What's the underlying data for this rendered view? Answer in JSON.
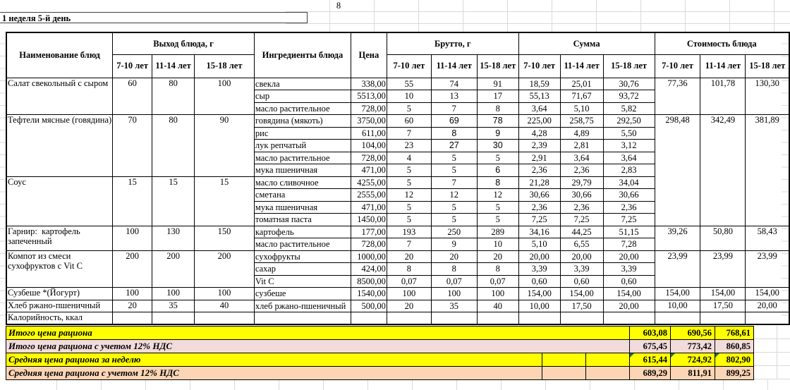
{
  "page": {
    "sheet_number": "8",
    "title": "1 неделя 5-й день"
  },
  "header": {
    "name": "Наименование блюд",
    "output": "Выход блюда, г",
    "ingredients": "Ингредиенты блюда",
    "price": "Цена",
    "gross": "Брутто, г",
    "sum": "Сумма",
    "cost": "Стоимость блюда",
    "ages": [
      "7-10 лет",
      "11-14 лет",
      "15-18 лет"
    ]
  },
  "dishes": [
    {
      "name": "Салат свекольный с сыром",
      "out": [
        "60",
        "80",
        "100"
      ],
      "costSpan": 3,
      "cost": [
        "77,36",
        "101,78",
        "130,30"
      ],
      "rows": [
        {
          "ing": "свекла",
          "price": "338,00",
          "gross": [
            "55",
            "74",
            "91"
          ],
          "sum": [
            "18,59",
            "25,01",
            "30,76"
          ]
        },
        {
          "ing": "сыр",
          "price": "5513,00",
          "gross": [
            "10",
            "13",
            "17"
          ],
          "sum": [
            "55,13",
            "71,67",
            "93,72"
          ]
        },
        {
          "ing": "масло растительное",
          "price": "728,00",
          "gross": [
            "5",
            "7",
            "8"
          ],
          "sum": [
            "3,64",
            "5,10",
            "5,82"
          ]
        }
      ]
    },
    {
      "name": "Тефтели мясные (говядина)",
      "out": [
        "70",
        "80",
        "90"
      ],
      "costSpan": 9,
      "cost": [
        "298,48",
        "342,49",
        "381,89"
      ],
      "rows": [
        {
          "ing": "говядина (мякоть)",
          "price": "3750,00",
          "gross": [
            "60",
            "69",
            "78"
          ],
          "gb": [
            false,
            true,
            true
          ],
          "sum": [
            "225,00",
            "258,75",
            "292,50"
          ]
        },
        {
          "ing": "рис",
          "price": "611,00",
          "gross": [
            "7",
            "8",
            "9"
          ],
          "gb": [
            false,
            true,
            true
          ],
          "sum": [
            "4,28",
            "4,89",
            "5,50"
          ]
        },
        {
          "ing": "лук репчатый",
          "price": "104,00",
          "gross": [
            "23",
            "27",
            "30"
          ],
          "gb": [
            false,
            true,
            true
          ],
          "sum": [
            "2,39",
            "2,81",
            "3,12"
          ]
        },
        {
          "ing": "масло растительное",
          "price": "728,00",
          "gross": [
            "4",
            "5",
            "5"
          ],
          "sum": [
            "2,91",
            "3,64",
            "3,64"
          ]
        },
        {
          "ing": "мука пшеничная",
          "price": "471,00",
          "gross": [
            "5",
            "5",
            "6"
          ],
          "gb": [
            false,
            false,
            true
          ],
          "sum": [
            "2,36",
            "2,36",
            "2,83"
          ]
        }
      ]
    },
    {
      "name": "Соус",
      "out": [
        "15",
        "15",
        "15"
      ],
      "costSpan": 0,
      "cost": [],
      "rows": [
        {
          "ing": "масло сливочное",
          "price": "4255,00",
          "gross": [
            "5",
            "7",
            "8"
          ],
          "gb": [
            false,
            false,
            true
          ],
          "sum": [
            "21,28",
            "29,79",
            "34,04"
          ]
        },
        {
          "ing": "сметана",
          "price": "2555,00",
          "gross": [
            "12",
            "12",
            "12"
          ],
          "sum": [
            "30,66",
            "30,66",
            "30,66"
          ]
        },
        {
          "ing": "мука пшеничная",
          "price": "471,00",
          "gross": [
            "5",
            "5",
            "5"
          ],
          "sum": [
            "2,36",
            "2,36",
            "2,36"
          ]
        },
        {
          "ing": "томатная паста",
          "price": "1450,00",
          "gross": [
            "5",
            "5",
            "5"
          ],
          "sum": [
            "7,25",
            "7,25",
            "7,25"
          ]
        }
      ]
    },
    {
      "name": "Гарнир:  картофель\nзапеченный",
      "out": [
        "100",
        "130",
        "150"
      ],
      "costSpan": 2,
      "cost": [
        "39,26",
        "50,80",
        "58,43"
      ],
      "rows": [
        {
          "ing": "картофель",
          "price": "177,00",
          "gross": [
            "193",
            "250",
            "289"
          ],
          "sum": [
            "34,16",
            "44,25",
            "51,15"
          ]
        },
        {
          "ing": "масло растительное",
          "price": "728,00",
          "gross": [
            "7",
            "9",
            "10"
          ],
          "sum": [
            "5,10",
            "6,55",
            "7,28"
          ]
        }
      ]
    },
    {
      "name": "Компот из смеси\nсухофруктов с Vit C",
      "out": [
        "200",
        "200",
        "200"
      ],
      "costSpan": 3,
      "cost": [
        "23,99",
        "23,99",
        "23,99"
      ],
      "rows": [
        {
          "ing": "сухофрукты",
          "price": "1000,00",
          "gross": [
            "20",
            "20",
            "20"
          ],
          "sum": [
            "20,00",
            "20,00",
            "20,00"
          ]
        },
        {
          "ing": "сахар",
          "price": "424,00",
          "gross": [
            "8",
            "8",
            "8"
          ],
          "sum": [
            "3,39",
            "3,39",
            "3,39"
          ]
        },
        {
          "ing": "Vit C",
          "price": "8500,00",
          "gross": [
            "0,07",
            "0,07",
            "0,07"
          ],
          "sum": [
            "0,60",
            "0,60",
            "0,60"
          ]
        }
      ]
    },
    {
      "name": "Сузбеше *(Йогурт)",
      "out": [
        "100",
        "100",
        "100"
      ],
      "costSpan": 1,
      "cost": [
        "154,00",
        "154,00",
        "154,00"
      ],
      "rows": [
        {
          "ing": "сузбеше",
          "price": "1540,00",
          "gross": [
            "100",
            "100",
            "100"
          ],
          "sum": [
            "154,00",
            "154,00",
            "154,00"
          ]
        }
      ]
    },
    {
      "name": "Хлеб ржано-пшеничный",
      "out": [
        "20",
        "35",
        "40"
      ],
      "costSpan": 1,
      "cost": [
        "10,00",
        "17,50",
        "20,00"
      ],
      "rows": [
        {
          "ing": "хлеб ржано-пшеничный",
          "price": "500,00",
          "gross": [
            "20",
            "35",
            "40"
          ],
          "sum": [
            "10,00",
            "17,50",
            "20,00"
          ]
        }
      ]
    },
    {
      "name": "Калорийность, ккал",
      "nameBold": true,
      "out": [
        "",
        "",
        ""
      ],
      "costSpan": 1,
      "cost": [
        "",
        "",
        ""
      ],
      "rows": [
        {
          "ing": "",
          "price": "",
          "gross": [
            "",
            "",
            ""
          ],
          "sum": [
            "",
            "",
            ""
          ]
        }
      ]
    }
  ],
  "summary": {
    "rows": [
      {
        "label": "Итого цена рациона",
        "values": [
          "603,08",
          "690,56",
          "768,61"
        ],
        "bg": "#ffff00",
        "extra_cells": false,
        "flagged": false
      },
      {
        "label": "Итого цена рациона с учетом 12% НДС",
        "values": [
          "675,45",
          "773,42",
          "860,85"
        ],
        "bg": "#f2dcdb",
        "extra_cells": false,
        "flagged": false
      },
      {
        "label": "Средняя цена рациона за неделю",
        "values": [
          "615,44",
          "724,92",
          "802,90"
        ],
        "bg": "#ffff00",
        "extra_cells": true,
        "flagged": true
      },
      {
        "label": "Средняя цена рациона с учетом 12% НДС",
        "values": [
          "689,29",
          "811,91",
          "899,25"
        ],
        "bg": "#fbd5b4",
        "extra_cells": true,
        "flagged": false
      }
    ]
  },
  "colors": {
    "highlight_yellow": "#ffff00",
    "highlight_pink": "#f2dcdb",
    "highlight_peach": "#fbd5b4",
    "error_flag_green": "#1e7145",
    "table_border": "#000000",
    "background_gridline": "#d9d9d9"
  }
}
